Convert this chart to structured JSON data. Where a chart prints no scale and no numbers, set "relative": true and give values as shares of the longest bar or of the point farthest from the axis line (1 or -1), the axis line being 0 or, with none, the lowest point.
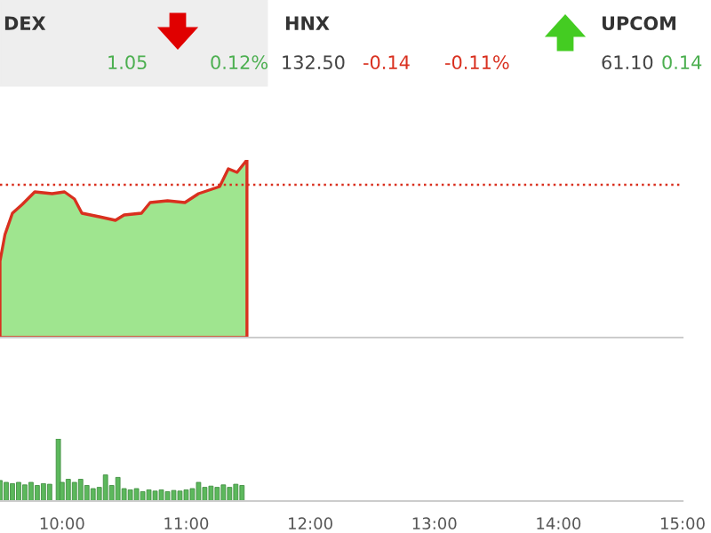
{
  "chart_data": [
    {
      "type": "area",
      "relative": true,
      "annotations": [
        "DEX",
        "1.05",
        "0.12%",
        "HNX",
        "132.50",
        "-0.14",
        "-0.11%",
        "UPCOM",
        "61.10",
        "0.14"
      ],
      "x": [
        9.5,
        9.54,
        9.6,
        9.68,
        9.78,
        9.92,
        10.02,
        10.1,
        10.16,
        10.3,
        10.43,
        10.5,
        10.64,
        10.71,
        10.85,
        10.99,
        11.1,
        11.27,
        11.34,
        11.41,
        11.49
      ],
      "series": [
        {
          "color": "#9fe58f",
          "values": [
            0.43,
            0.58,
            0.7,
            0.75,
            0.82,
            0.81,
            0.82,
            0.78,
            0.7,
            0.68,
            0.66,
            0.69,
            0.7,
            0.76,
            0.77,
            0.76,
            0.81,
            0.85,
            0.95,
            0.93,
            1.0
          ]
        }
      ],
      "ref_lines": [
        {
          "axis": "y",
          "value": 0.86,
          "color": "#d9301f",
          "line_style": "dotted"
        }
      ],
      "xlim": [
        9.5,
        15.0
      ],
      "tick_labels": false
    },
    {
      "type": "bar",
      "relative": true,
      "x": [
        9.5,
        9.55,
        9.6,
        9.65,
        9.7,
        9.75,
        9.8,
        9.85,
        9.9,
        9.97,
        10.0,
        10.05,
        10.1,
        10.15,
        10.2,
        10.25,
        10.3,
        10.35,
        10.4,
        10.45,
        10.5,
        10.55,
        10.6,
        10.65,
        10.7,
        10.75,
        10.8,
        10.85,
        10.9,
        10.95,
        11.0,
        11.05,
        11.1,
        11.15,
        11.2,
        11.25,
        11.3,
        11.35,
        11.4,
        11.45
      ],
      "series": [
        {
          "color": "#5cb85c",
          "values": [
            0.33,
            0.3,
            0.28,
            0.3,
            0.26,
            0.3,
            0.25,
            0.28,
            0.27,
            1.0,
            0.3,
            0.35,
            0.3,
            0.35,
            0.25,
            0.2,
            0.22,
            0.42,
            0.25,
            0.38,
            0.2,
            0.18,
            0.2,
            0.15,
            0.18,
            0.16,
            0.18,
            0.15,
            0.17,
            0.16,
            0.18,
            0.2,
            0.3,
            0.22,
            0.24,
            0.22,
            0.26,
            0.22,
            0.27,
            0.25
          ]
        }
      ],
      "xlim": [
        9.5,
        15.0
      ],
      "xticks": [
        {
          "value": 10,
          "label": "10:00"
        },
        {
          "value": 11,
          "label": "11:00"
        },
        {
          "value": 12,
          "label": "12:00"
        },
        {
          "value": 13,
          "label": "13:00"
        },
        {
          "value": 14,
          "label": "14:00"
        },
        {
          "value": 15,
          "label": "15:00"
        }
      ],
      "tick_labels": "x"
    }
  ]
}
